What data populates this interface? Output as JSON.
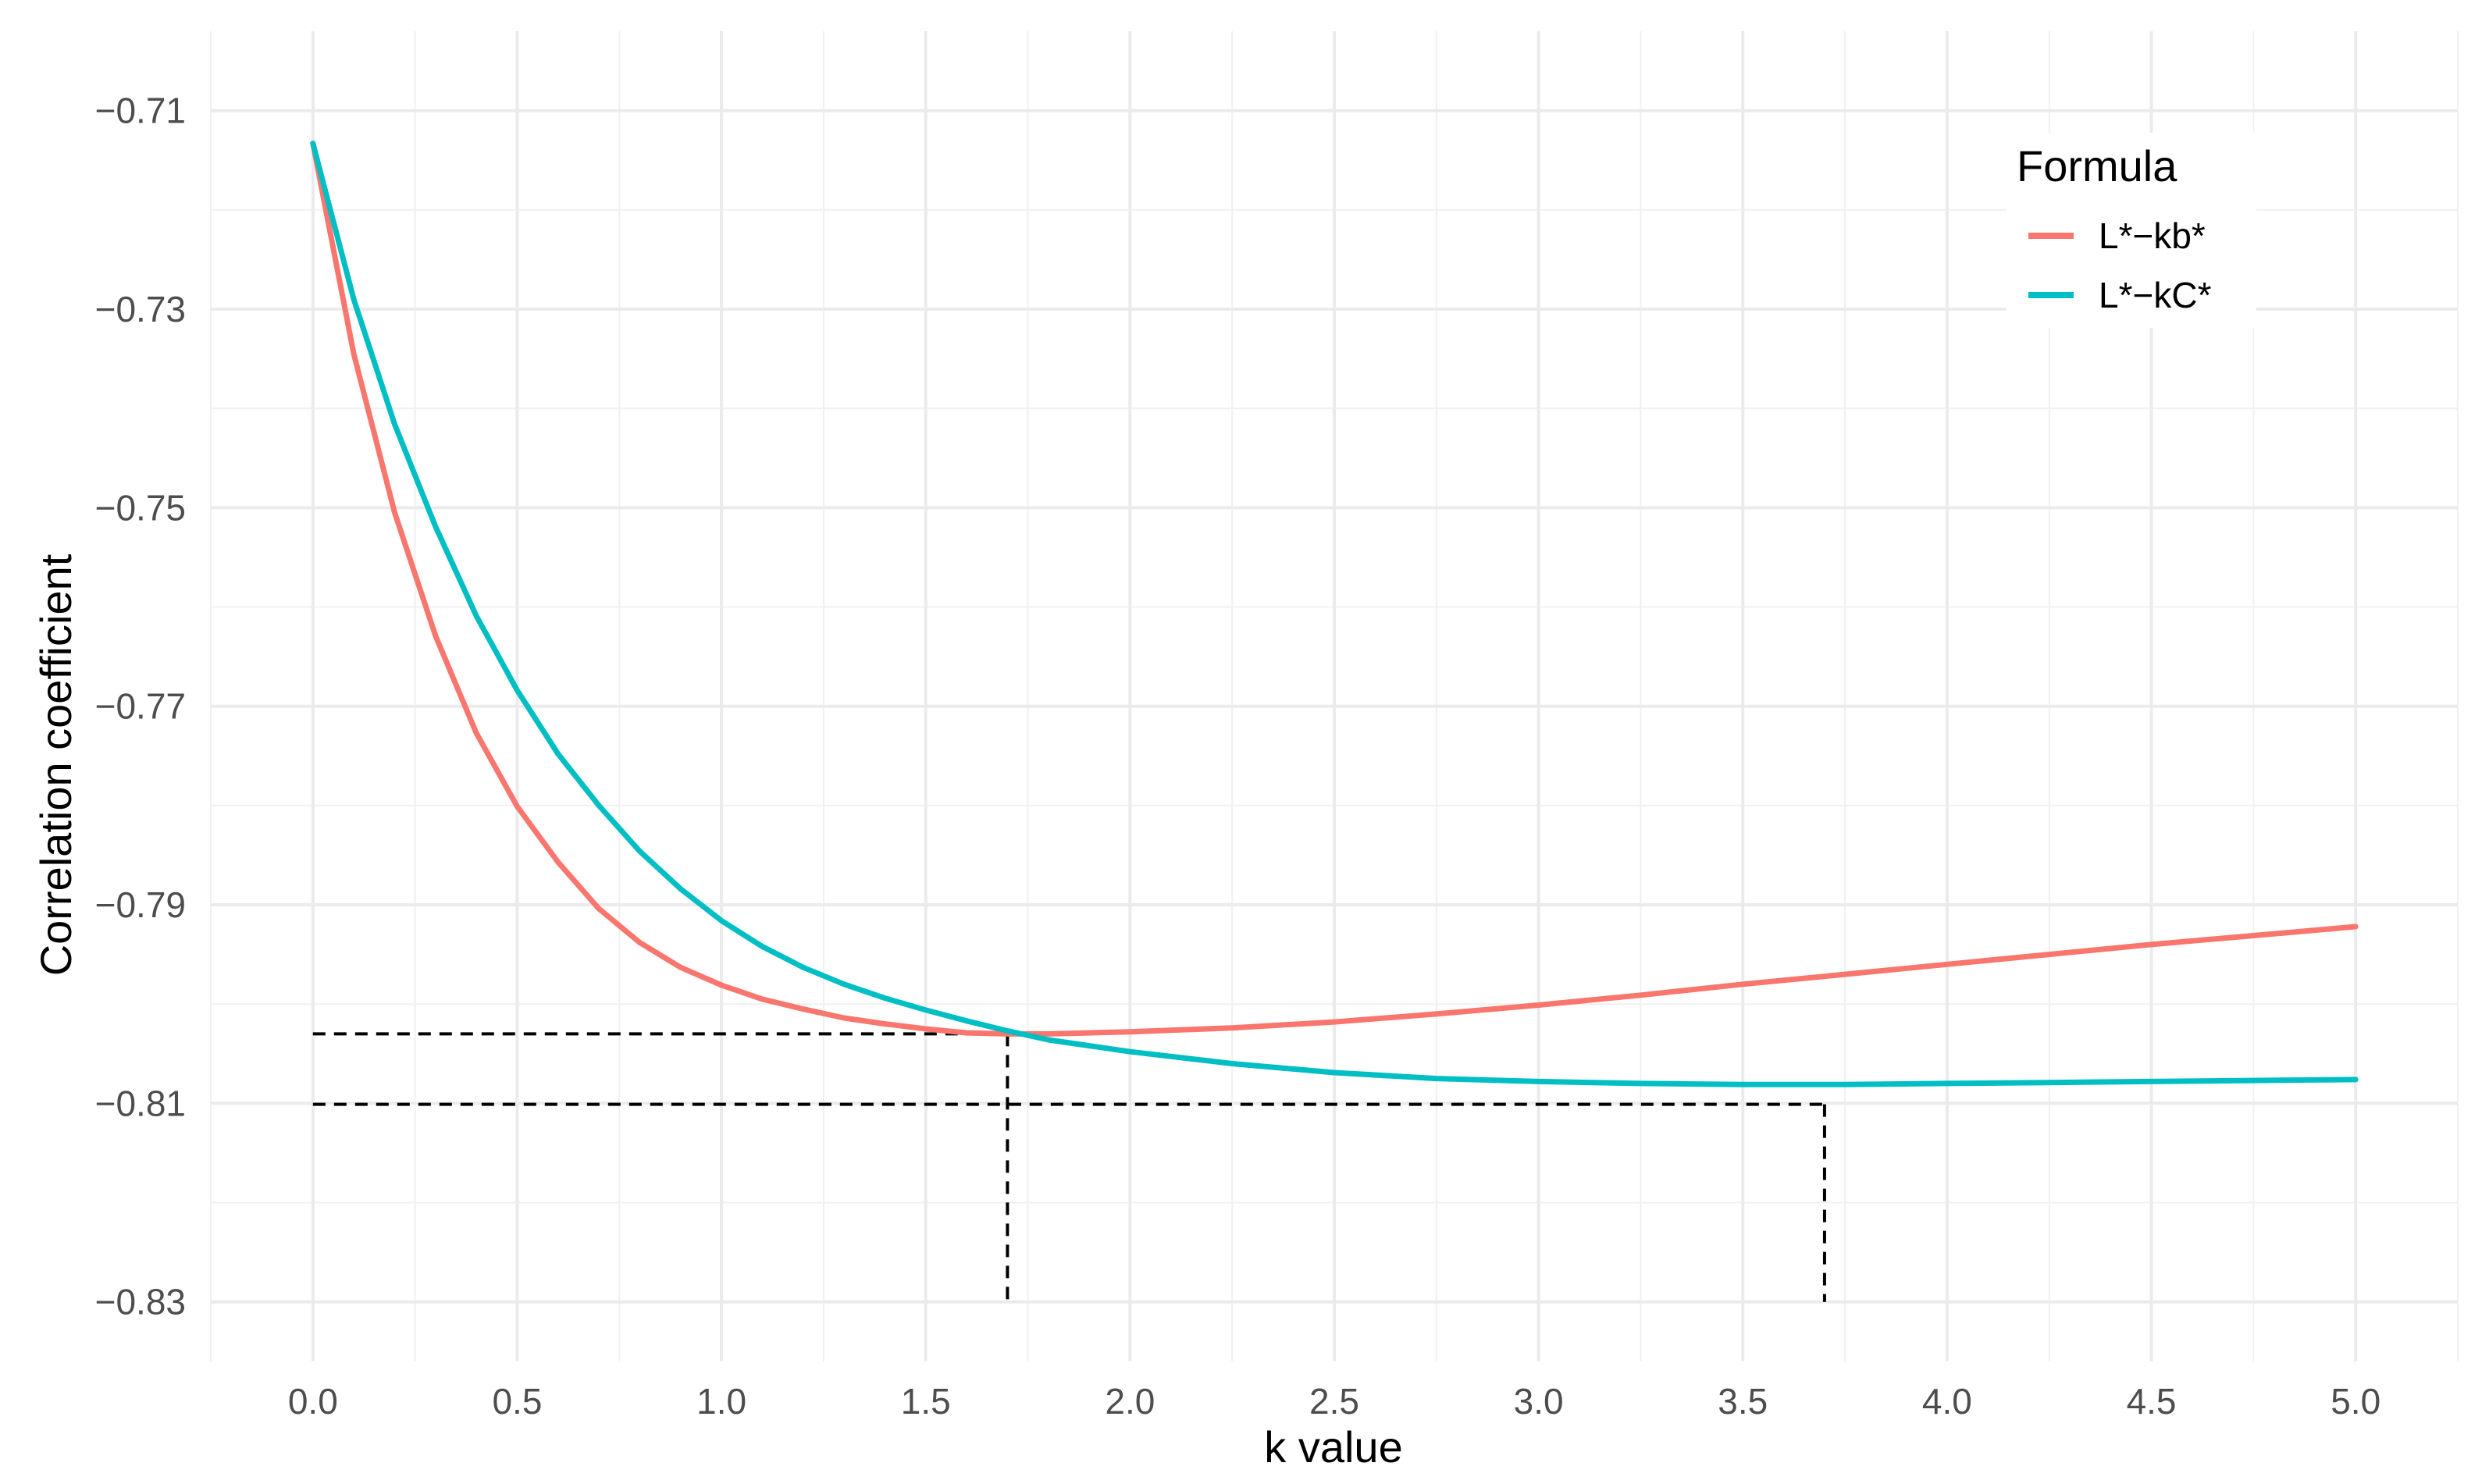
{
  "chart_data": {
    "type": "line",
    "xlabel": "k value",
    "ylabel": "Correlation coefficient",
    "xlim": [
      -0.25,
      5.25
    ],
    "ylim": [
      -0.836,
      -0.702
    ],
    "x_ticks": [
      0.0,
      0.5,
      1.0,
      1.5,
      2.0,
      2.5,
      3.0,
      3.5,
      4.0,
      4.5,
      5.0
    ],
    "x_tick_labels": [
      "0.0",
      "0.5",
      "1.0",
      "1.5",
      "2.0",
      "2.5",
      "3.0",
      "3.5",
      "4.0",
      "4.5",
      "5.0"
    ],
    "y_ticks": [
      -0.71,
      -0.73,
      -0.75,
      -0.77,
      -0.79,
      -0.81,
      -0.83
    ],
    "y_tick_labels": [
      "−0.71",
      "−0.73",
      "−0.75",
      "−0.77",
      "−0.79",
      "−0.81",
      "−0.83"
    ],
    "grid": true,
    "legend": {
      "title": "Formula",
      "position": "top-right"
    },
    "series": [
      {
        "name": "L*−kb*",
        "color": "#F8766D",
        "x": [
          0.0,
          0.1,
          0.2,
          0.3,
          0.4,
          0.5,
          0.6,
          0.7,
          0.8,
          0.9,
          1.0,
          1.1,
          1.2,
          1.3,
          1.4,
          1.5,
          1.6,
          1.7,
          1.8,
          1.9,
          2.0,
          2.25,
          2.5,
          2.75,
          3.0,
          3.25,
          3.5,
          3.75,
          4.0,
          4.25,
          4.5,
          4.75,
          5.0
        ],
        "y": [
          -0.7133,
          -0.7345,
          -0.7505,
          -0.7629,
          -0.7727,
          -0.7801,
          -0.7857,
          -0.7904,
          -0.7938,
          -0.7963,
          -0.7981,
          -0.7995,
          -0.8005,
          -0.8014,
          -0.802,
          -0.8025,
          -0.8029,
          -0.803,
          -0.803,
          -0.8029,
          -0.8028,
          -0.8024,
          -0.8018,
          -0.801,
          -0.8001,
          -0.7991,
          -0.798,
          -0.797,
          -0.796,
          -0.795,
          -0.794,
          -0.7931,
          -0.7922
        ]
      },
      {
        "name": "L*−kC*",
        "color": "#00BFC4",
        "x": [
          0.0,
          0.1,
          0.2,
          0.3,
          0.4,
          0.5,
          0.6,
          0.7,
          0.8,
          0.9,
          1.0,
          1.1,
          1.2,
          1.3,
          1.4,
          1.5,
          1.6,
          1.7,
          1.8,
          1.9,
          2.0,
          2.25,
          2.5,
          2.75,
          3.0,
          3.25,
          3.5,
          3.75,
          4.0,
          4.25,
          4.5,
          4.75,
          5.0
        ],
        "y": [
          -0.7133,
          -0.729,
          -0.7416,
          -0.7519,
          -0.7609,
          -0.7684,
          -0.7748,
          -0.78,
          -0.7846,
          -0.7884,
          -0.7916,
          -0.7942,
          -0.7963,
          -0.798,
          -0.7994,
          -0.8006,
          -0.8017,
          -0.8027,
          -0.8036,
          -0.8042,
          -0.8048,
          -0.806,
          -0.8069,
          -0.8075,
          -0.8078,
          -0.808,
          -0.8081,
          -0.8081,
          -0.808,
          -0.8079,
          -0.8078,
          -0.8077,
          -0.8076
        ]
      }
    ],
    "reference_lines": [
      {
        "style": "dashed",
        "y": -0.803,
        "x_from": 0.0,
        "x_to": 1.7
      },
      {
        "style": "dashed",
        "x": 1.7,
        "y_from": -0.803,
        "y_to": -0.83
      },
      {
        "style": "dashed",
        "y": -0.8101,
        "x_from": 0.0,
        "x_to": 3.7
      },
      {
        "style": "dashed",
        "x": 3.7,
        "y_from": -0.8101,
        "y_to": -0.83
      }
    ]
  }
}
